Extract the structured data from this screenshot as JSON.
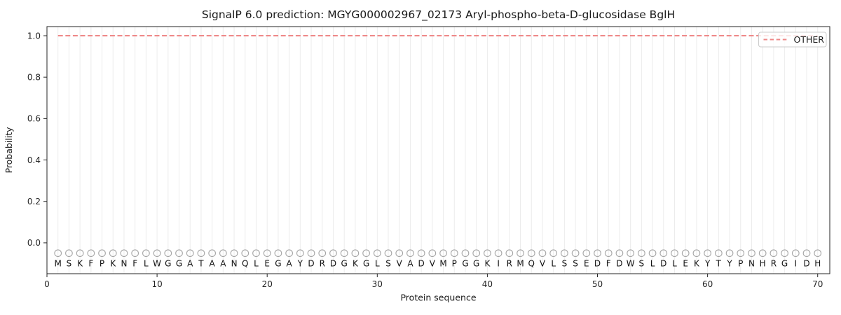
{
  "chart_data": {
    "type": "line",
    "title": "SignalP 6.0 prediction: MGYG000002967_02173 Aryl-phospho-beta-D-glucosidase BglH",
    "xlabel": "Protein sequence",
    "ylabel": "Probability",
    "x_ticks": [
      0,
      10,
      20,
      30,
      40,
      50,
      60,
      70
    ],
    "y_ticks": [
      "0.0",
      "0.2",
      "0.4",
      "0.6",
      "0.8",
      "1.0"
    ],
    "xlim": [
      0,
      71.1
    ],
    "ylim": [
      -0.149,
      1.044
    ],
    "grid": {
      "vertical_per_residue": true,
      "color": "#ececec"
    },
    "legend": {
      "position": "upper-right",
      "entries": [
        {
          "label": "OTHER",
          "color": "#ee8888",
          "linestyle": "dashed"
        }
      ]
    },
    "series": [
      {
        "name": "OTHER",
        "color": "#ee8888",
        "linestyle": "dashed",
        "linewidth": 2,
        "x": [
          1,
          2,
          3,
          4,
          5,
          6,
          7,
          8,
          9,
          10,
          11,
          12,
          13,
          14,
          15,
          16,
          17,
          18,
          19,
          20,
          21,
          22,
          23,
          24,
          25,
          26,
          27,
          28,
          29,
          30,
          31,
          32,
          33,
          34,
          35,
          36,
          37,
          38,
          39,
          40,
          41,
          42,
          43,
          44,
          45,
          46,
          47,
          48,
          49,
          50,
          51,
          52,
          53,
          54,
          55,
          56,
          57,
          58,
          59,
          60,
          61,
          62,
          63,
          64,
          65,
          66,
          67,
          68,
          69,
          70
        ],
        "values": [
          1.0,
          1.0,
          1.0,
          1.0,
          1.0,
          1.0,
          1.0,
          1.0,
          1.0,
          1.0,
          1.0,
          1.0,
          1.0,
          1.0,
          1.0,
          1.0,
          1.0,
          1.0,
          1.0,
          1.0,
          1.0,
          1.0,
          1.0,
          1.0,
          1.0,
          1.0,
          1.0,
          1.0,
          1.0,
          1.0,
          1.0,
          1.0,
          1.0,
          1.0,
          1.0,
          1.0,
          1.0,
          1.0,
          1.0,
          1.0,
          1.0,
          1.0,
          1.0,
          1.0,
          1.0,
          1.0,
          1.0,
          1.0,
          1.0,
          1.0,
          1.0,
          1.0,
          1.0,
          1.0,
          1.0,
          1.0,
          1.0,
          1.0,
          1.0,
          1.0,
          1.0,
          1.0,
          1.0,
          1.0,
          1.0,
          1.0,
          1.0,
          1.0,
          1.0,
          1.0
        ]
      }
    ],
    "sequence": {
      "residues": "MSKFPKNFLWGGATAANQLEGAYDRDGKGLSVADVMPGGKIRMQVLSSEDFDWSLDLEKYTYPNHRGIDH",
      "first_position": 1,
      "last_position": 70,
      "marker": {
        "shape": "open-circle",
        "color": "#a6a6a6",
        "y_value": -0.05
      }
    }
  }
}
